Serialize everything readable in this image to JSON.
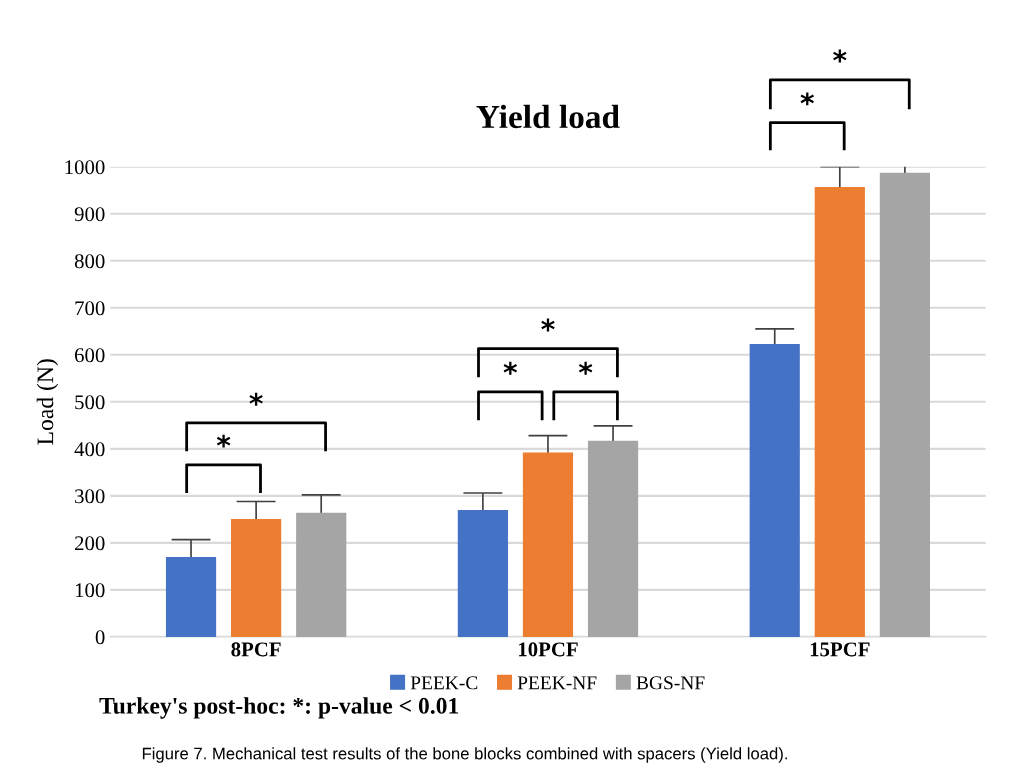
{
  "chart_data": {
    "type": "bar",
    "title": "Yield load",
    "ylabel": "Load (N)",
    "categories": [
      "8PCF",
      "10PCF",
      "15PCF"
    ],
    "series": [
      {
        "name": "PEEK-C",
        "color": "#4472c4",
        "values": [
          170,
          270,
          623
        ],
        "errors": [
          37,
          36,
          32
        ]
      },
      {
        "name": "PEEK-NF",
        "color": "#ed7d31",
        "values": [
          251,
          392,
          957
        ],
        "errors": [
          37,
          36,
          43
        ]
      },
      {
        "name": "BGS-NF",
        "color": "#a5a5a5",
        "values": [
          264,
          417,
          987
        ],
        "errors": [
          38,
          32,
          41
        ]
      }
    ],
    "ylim": [
      0,
      1000
    ],
    "yticks": [
      0,
      100,
      200,
      300,
      400,
      500,
      600,
      700,
      800,
      900,
      1000
    ],
    "grid": "y",
    "legend": "bottom",
    "annotations": [
      "*",
      "*",
      "*",
      "*",
      "*",
      "*",
      "*",
      "Turkey's post-hoc: *: p-value < 0.01",
      "Figure 7. Mechanical test results of the bone blocks combined with spacers (Yield load)."
    ]
  }
}
